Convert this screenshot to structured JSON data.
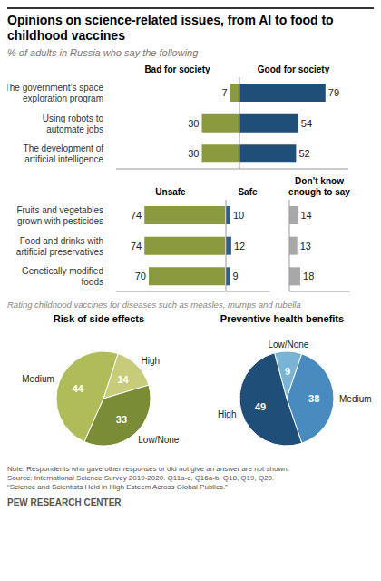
{
  "title": "Opinions on science-related issues, from AI to food to\nchildhood vaccines",
  "subtitle": "% of adults in Russia who say the following",
  "annotations": [
    "Note: Respondents who gave other responses or did not give an answer are not shown.",
    "Source: International Science Survey 2019-2020. Q11a-c, Q16a-b, Q18, Q19, Q20.",
    "“Science and Scientists Held in High Esteem Across Global Publics.”",
    "PEW RESEARCH CENTER"
  ],
  "chart_data": [
    {
      "type": "bar",
      "orientation": "horizontal",
      "categories": [
        "The government’s space\nexploration program",
        "Using robots to\nautomate jobs",
        "The development of\nartificial intelligence"
      ],
      "series": [
        {
          "name": "Bad for society",
          "color": "#8b9a3e",
          "values": [
            7,
            30,
            30
          ]
        },
        {
          "name": "Good for society",
          "color": "#1f4e79",
          "values": [
            79,
            54,
            52
          ]
        }
      ],
      "xlim": [
        0,
        100
      ],
      "tick_labels": "y",
      "data_labels": true
    },
    {
      "type": "bar",
      "orientation": "horizontal",
      "categories": [
        "Fruits and vegetables\ngrown with pesticides",
        "Food and drinks with\nartificial preservatives",
        "Genetically modified\nfoods"
      ],
      "series": [
        {
          "name": "Unsafe",
          "color": "#8b9a3e",
          "values": [
            74,
            74,
            70
          ]
        },
        {
          "name": "Safe",
          "color": "#2e5f8a",
          "values": [
            10,
            12,
            9
          ]
        },
        {
          "name": "Don’t know\nenough to say",
          "color": "#a8a8a8",
          "values": [
            14,
            13,
            18
          ]
        }
      ],
      "xlim": [
        0,
        100
      ],
      "tick_labels": "y",
      "data_labels": true
    },
    {
      "type": "pie",
      "title": "Risk of side effects",
      "subtitle": "Rating childhood vaccines for diseases such as measles, mumps and rubella",
      "categories": [
        "High",
        "Low/None",
        "Medium"
      ],
      "values": [
        14,
        33,
        44
      ],
      "colors": [
        "#c8cc7a",
        "#7a8c35",
        "#b0bc5a"
      ],
      "data_labels": true
    },
    {
      "type": "pie",
      "title": "Preventive health benefits",
      "categories": [
        "Low/None",
        "Medium",
        "High"
      ],
      "values": [
        9,
        38,
        49
      ],
      "colors": [
        "#7ab4d4",
        "#4a8bbf",
        "#1f4e79"
      ],
      "data_labels": true
    }
  ]
}
